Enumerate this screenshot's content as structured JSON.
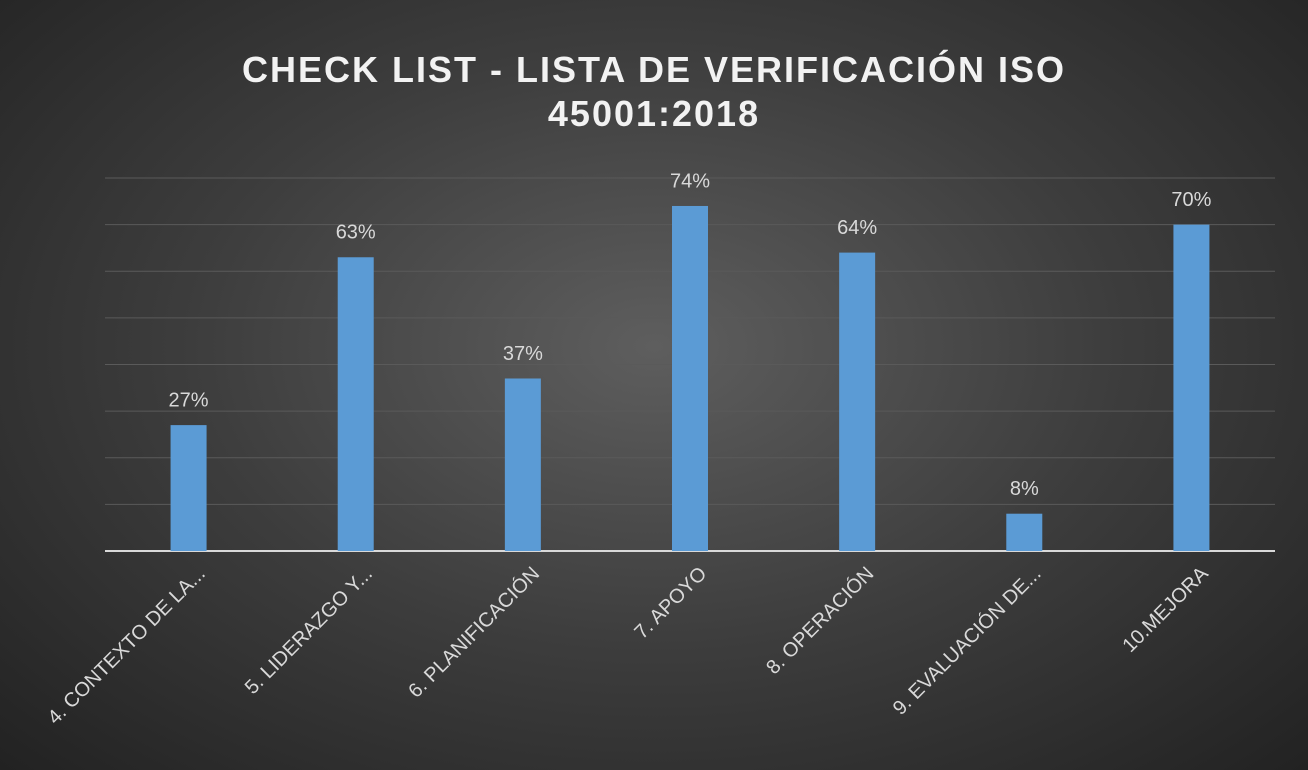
{
  "chart_data": {
    "type": "bar",
    "title": "CHECK LIST - LISTA DE VERIFICACIÓN ISO 45001:2018",
    "categories": [
      "4. CONTEXTO DE LA...",
      "5. LIDERAZGO Y...",
      "6. PLANIFICACIÓN",
      "7. APOYO",
      "8. OPERACIÓN",
      "9. EVALUACIÓN DE...",
      "10.MEJORA"
    ],
    "values": [
      27,
      63,
      37,
      74,
      64,
      8,
      70
    ],
    "value_labels": [
      "27%",
      "63%",
      "37%",
      "74%",
      "64%",
      "8%",
      "70%"
    ],
    "color": "#5b9bd5",
    "ylim": [
      0,
      80
    ],
    "yticks": [
      0,
      10,
      20,
      30,
      40,
      50,
      60,
      70,
      80
    ],
    "grid": true
  }
}
